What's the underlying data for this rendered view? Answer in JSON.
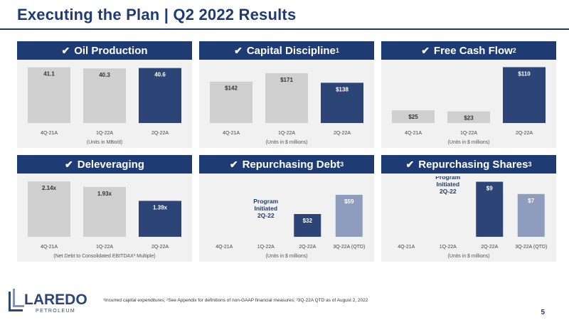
{
  "header": {
    "title": "Executing the Plan | Q2 2022 Results"
  },
  "colors": {
    "navy": "#2d4576",
    "gray": "#d0cfcf",
    "light_blue": "#8e9dbd",
    "banner": "#1f3b73"
  },
  "panels": [
    {
      "heading": "Oil Production",
      "sup": "",
      "check": "✔"
    },
    {
      "heading": "Capital Discipline",
      "sup": "1",
      "check": "✔"
    },
    {
      "heading": "Free Cash Flow",
      "sup": "2",
      "check": "✔"
    },
    {
      "heading": "Deleveraging",
      "sup": "",
      "check": "✔"
    },
    {
      "heading": "Repurchasing Debt",
      "sup": "3",
      "check": "✔"
    },
    {
      "heading": "Repurchasing Shares",
      "sup": "3",
      "check": "✔"
    }
  ],
  "chart_data": [
    {
      "type": "bar",
      "categories": [
        "4Q-21A",
        "1Q-22A",
        "2Q-22A"
      ],
      "values": [
        41.1,
        40.3,
        40.6
      ],
      "labels": [
        "41.1",
        "40.3",
        "40.6"
      ],
      "colors": [
        "gray",
        "gray",
        "navy"
      ],
      "ylim": [
        0,
        42
      ],
      "xlabel": "(Units in MBo/d)",
      "label_position": "top-inside",
      "annotation": ""
    },
    {
      "type": "bar",
      "categories": [
        "4Q-21A",
        "1Q-22A",
        "2Q-22A"
      ],
      "values": [
        142,
        171,
        138
      ],
      "labels": [
        "$142",
        "$171",
        "$138"
      ],
      "colors": [
        "gray",
        "gray",
        "navy"
      ],
      "ylim": [
        0,
        195
      ],
      "xlabel": "(Units in $ millions)",
      "label_position": "top-inside",
      "annotation": ""
    },
    {
      "type": "bar",
      "categories": [
        "4Q-21A",
        "1Q-22A",
        "2Q-22A"
      ],
      "values": [
        25,
        23,
        110
      ],
      "labels": [
        "$25",
        "$23",
        "$110"
      ],
      "colors": [
        "gray",
        "gray",
        "navy"
      ],
      "ylim": [
        0,
        112
      ],
      "xlabel": "(Units in $ millions)",
      "label_position": "top-inside",
      "annotation": ""
    },
    {
      "type": "bar",
      "categories": [
        "4Q-21A",
        "1Q-22A",
        "2Q-22A"
      ],
      "values": [
        2.14,
        1.93,
        1.39
      ],
      "labels": [
        "2.14x",
        "1.93x",
        "1.39x"
      ],
      "colors": [
        "gray",
        "gray",
        "navy"
      ],
      "ylim": [
        0,
        2.2
      ],
      "xlabel": "(Net Debt to Consolidated EBITDAX³ Multiple)",
      "label_position": "top-inside",
      "annotation": ""
    },
    {
      "type": "bar",
      "categories": [
        "4Q-21A",
        "1Q-22A",
        "2Q-22A",
        "3Q-22A (QTD)"
      ],
      "values": [
        0,
        0,
        32,
        59
      ],
      "labels": [
        "",
        "",
        "$32",
        "$59"
      ],
      "colors": [
        "gray",
        "gray",
        "navy",
        "light_blue"
      ],
      "ylim": [
        0,
        80
      ],
      "xlabel": "(Units in $ millions)",
      "label_position": "top-inside",
      "annotation": "Program\nInitiated\n2Q-22",
      "annotation_index": 1
    },
    {
      "type": "bar",
      "categories": [
        "4Q-21A",
        "1Q-22A",
        "2Q-22A",
        "3Q-22A (QTD)"
      ],
      "values": [
        0,
        0,
        9,
        7
      ],
      "labels": [
        "",
        "",
        "$9",
        "$7"
      ],
      "colors": [
        "gray",
        "gray",
        "navy",
        "light_blue"
      ],
      "ylim": [
        0,
        9.3
      ],
      "xlabel": "(Units in $ millions)",
      "label_position": "top-inside",
      "annotation": "Program\nInitiated\n2Q-22",
      "annotation_index": 1
    }
  ],
  "footer": {
    "note": "¹Incurred capital expenditures; ²See Appendix for definitions of non-GAAP financial measures; ³3Q-22A QTD as of August 2, 2022",
    "page_number": "5",
    "logo_main": "LAREDO",
    "logo_sub": "PETROLEUM"
  }
}
